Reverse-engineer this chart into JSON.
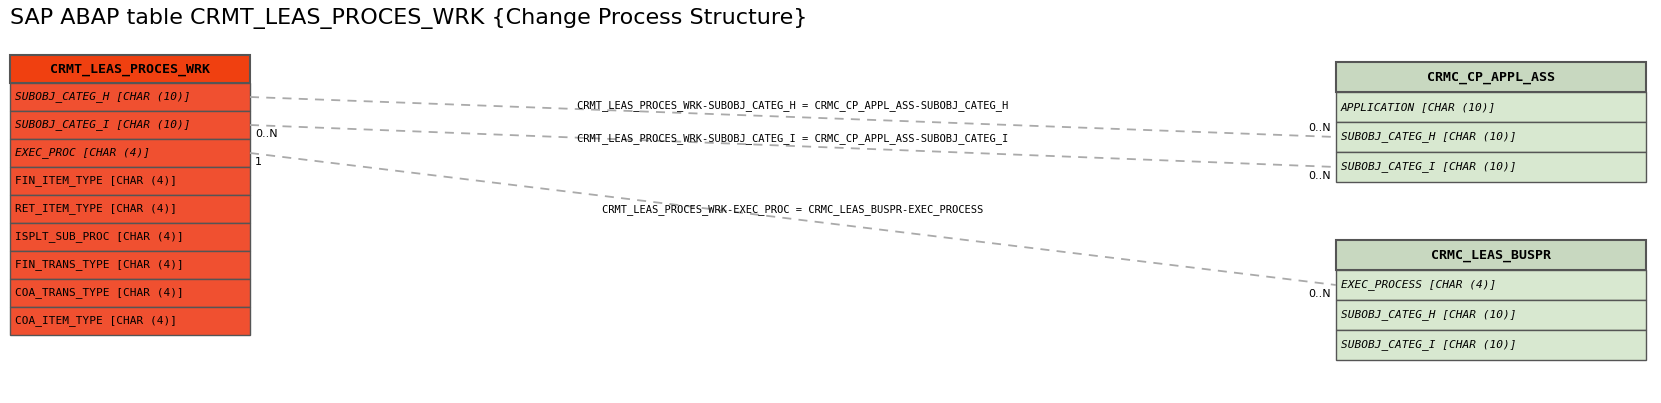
{
  "title": "SAP ABAP table CRMT_LEAS_PROCES_WRK {Change Process Structure}",
  "title_fontsize": 16,
  "bg_color": "#ffffff",
  "main_table": {
    "name": "CRMT_LEAS_PROCES_WRK",
    "header_color": "#f04010",
    "row_color": "#f05030",
    "fields": [
      {
        "name": "SUBOBJ_CATEG_H [CHAR (10)]",
        "italic": true
      },
      {
        "name": "SUBOBJ_CATEG_I [CHAR (10)]",
        "italic": true
      },
      {
        "name": "EXEC_PROC [CHAR (4)]",
        "italic": true
      },
      {
        "name": "FIN_ITEM_TYPE [CHAR (4)]",
        "italic": false
      },
      {
        "name": "RET_ITEM_TYPE [CHAR (4)]",
        "italic": false
      },
      {
        "name": "ISPLT_SUB_PROC [CHAR (4)]",
        "italic": false
      },
      {
        "name": "FIN_TRANS_TYPE [CHAR (4)]",
        "italic": false
      },
      {
        "name": "COA_TRANS_TYPE [CHAR (4)]",
        "italic": false
      },
      {
        "name": "COA_ITEM_TYPE [CHAR (4)]",
        "italic": false
      }
    ]
  },
  "table_appl": {
    "name": "CRMC_CP_APPL_ASS",
    "header_color": "#c8d8c0",
    "row_color": "#d8e8d0",
    "fields": [
      {
        "name": "APPLICATION [CHAR (10)]",
        "italic": true,
        "underline": true
      },
      {
        "name": "SUBOBJ_CATEG_H [CHAR (10)]",
        "italic": true,
        "underline": true
      },
      {
        "name": "SUBOBJ_CATEG_I [CHAR (10)]",
        "italic": true,
        "underline": true
      }
    ]
  },
  "table_buspr": {
    "name": "CRMC_LEAS_BUSPR",
    "header_color": "#c8d8c0",
    "row_color": "#d8e8d0",
    "fields": [
      {
        "name": "EXEC_PROCESS [CHAR (4)]",
        "italic": true,
        "underline": true
      },
      {
        "name": "SUBOBJ_CATEG_H [CHAR (10)]",
        "italic": true,
        "underline": true
      },
      {
        "name": "SUBOBJ_CATEG_I [CHAR (10)]",
        "italic": true,
        "underline": true
      }
    ]
  },
  "rel1_label": "CRMT_LEAS_PROCES_WRK-SUBOBJ_CATEG_H = CRMC_CP_APPL_ASS-SUBOBJ_CATEG_H",
  "rel2_label": "CRMT_LEAS_PROCES_WRK-SUBOBJ_CATEG_I = CRMC_CP_APPL_ASS-SUBOBJ_CATEG_I",
  "rel3_label": "CRMT_LEAS_PROCES_WRK-EXEC_PROC = CRMC_LEAS_BUSPR-EXEC_PROCESS",
  "line_color": "#aaaaaa",
  "label_fontsize": 7.5,
  "field_fontsize": 8.0,
  "header_fontsize": 9.5
}
